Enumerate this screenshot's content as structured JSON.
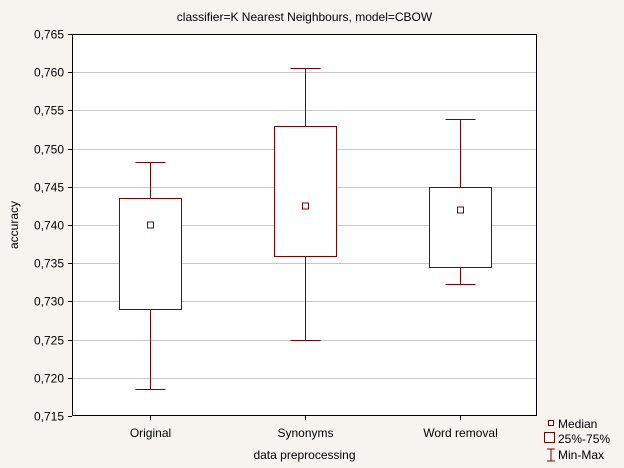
{
  "chart_data": {
    "type": "box",
    "title": "classifier=K Nearest Neighbours, model=CBOW",
    "xlabel": "data preprocessing",
    "ylabel": "accuracy",
    "ylim": [
      0.715,
      0.765
    ],
    "yticks": [
      0.715,
      0.72,
      0.725,
      0.73,
      0.735,
      0.74,
      0.745,
      0.75,
      0.755,
      0.76,
      0.765
    ],
    "ytick_labels": [
      "0,715",
      "0,720",
      "0,725",
      "0,730",
      "0,735",
      "0,740",
      "0,745",
      "0,750",
      "0,755",
      "0,760",
      "0,765"
    ],
    "categories": [
      "Original",
      "Synonyms",
      "Word removal"
    ],
    "boxes": [
      {
        "min": 0.7185,
        "q1": 0.729,
        "median": 0.74,
        "q3": 0.7435,
        "max": 0.7482
      },
      {
        "min": 0.7249,
        "q1": 0.7359,
        "median": 0.7425,
        "q3": 0.753,
        "max": 0.7605
      },
      {
        "min": 0.7323,
        "q1": 0.7345,
        "median": 0.742,
        "q3": 0.745,
        "max": 0.7539
      }
    ],
    "legend": [
      {
        "marker": "median",
        "label": "Median"
      },
      {
        "marker": "box",
        "label": "25%-75%"
      },
      {
        "marker": "whisker",
        "label": "Min-Max"
      }
    ],
    "legend_position": "bottom-right",
    "grid": true,
    "colors": {
      "box": "#800000",
      "grid": "#c8c8c8",
      "axis": "#000000"
    }
  }
}
